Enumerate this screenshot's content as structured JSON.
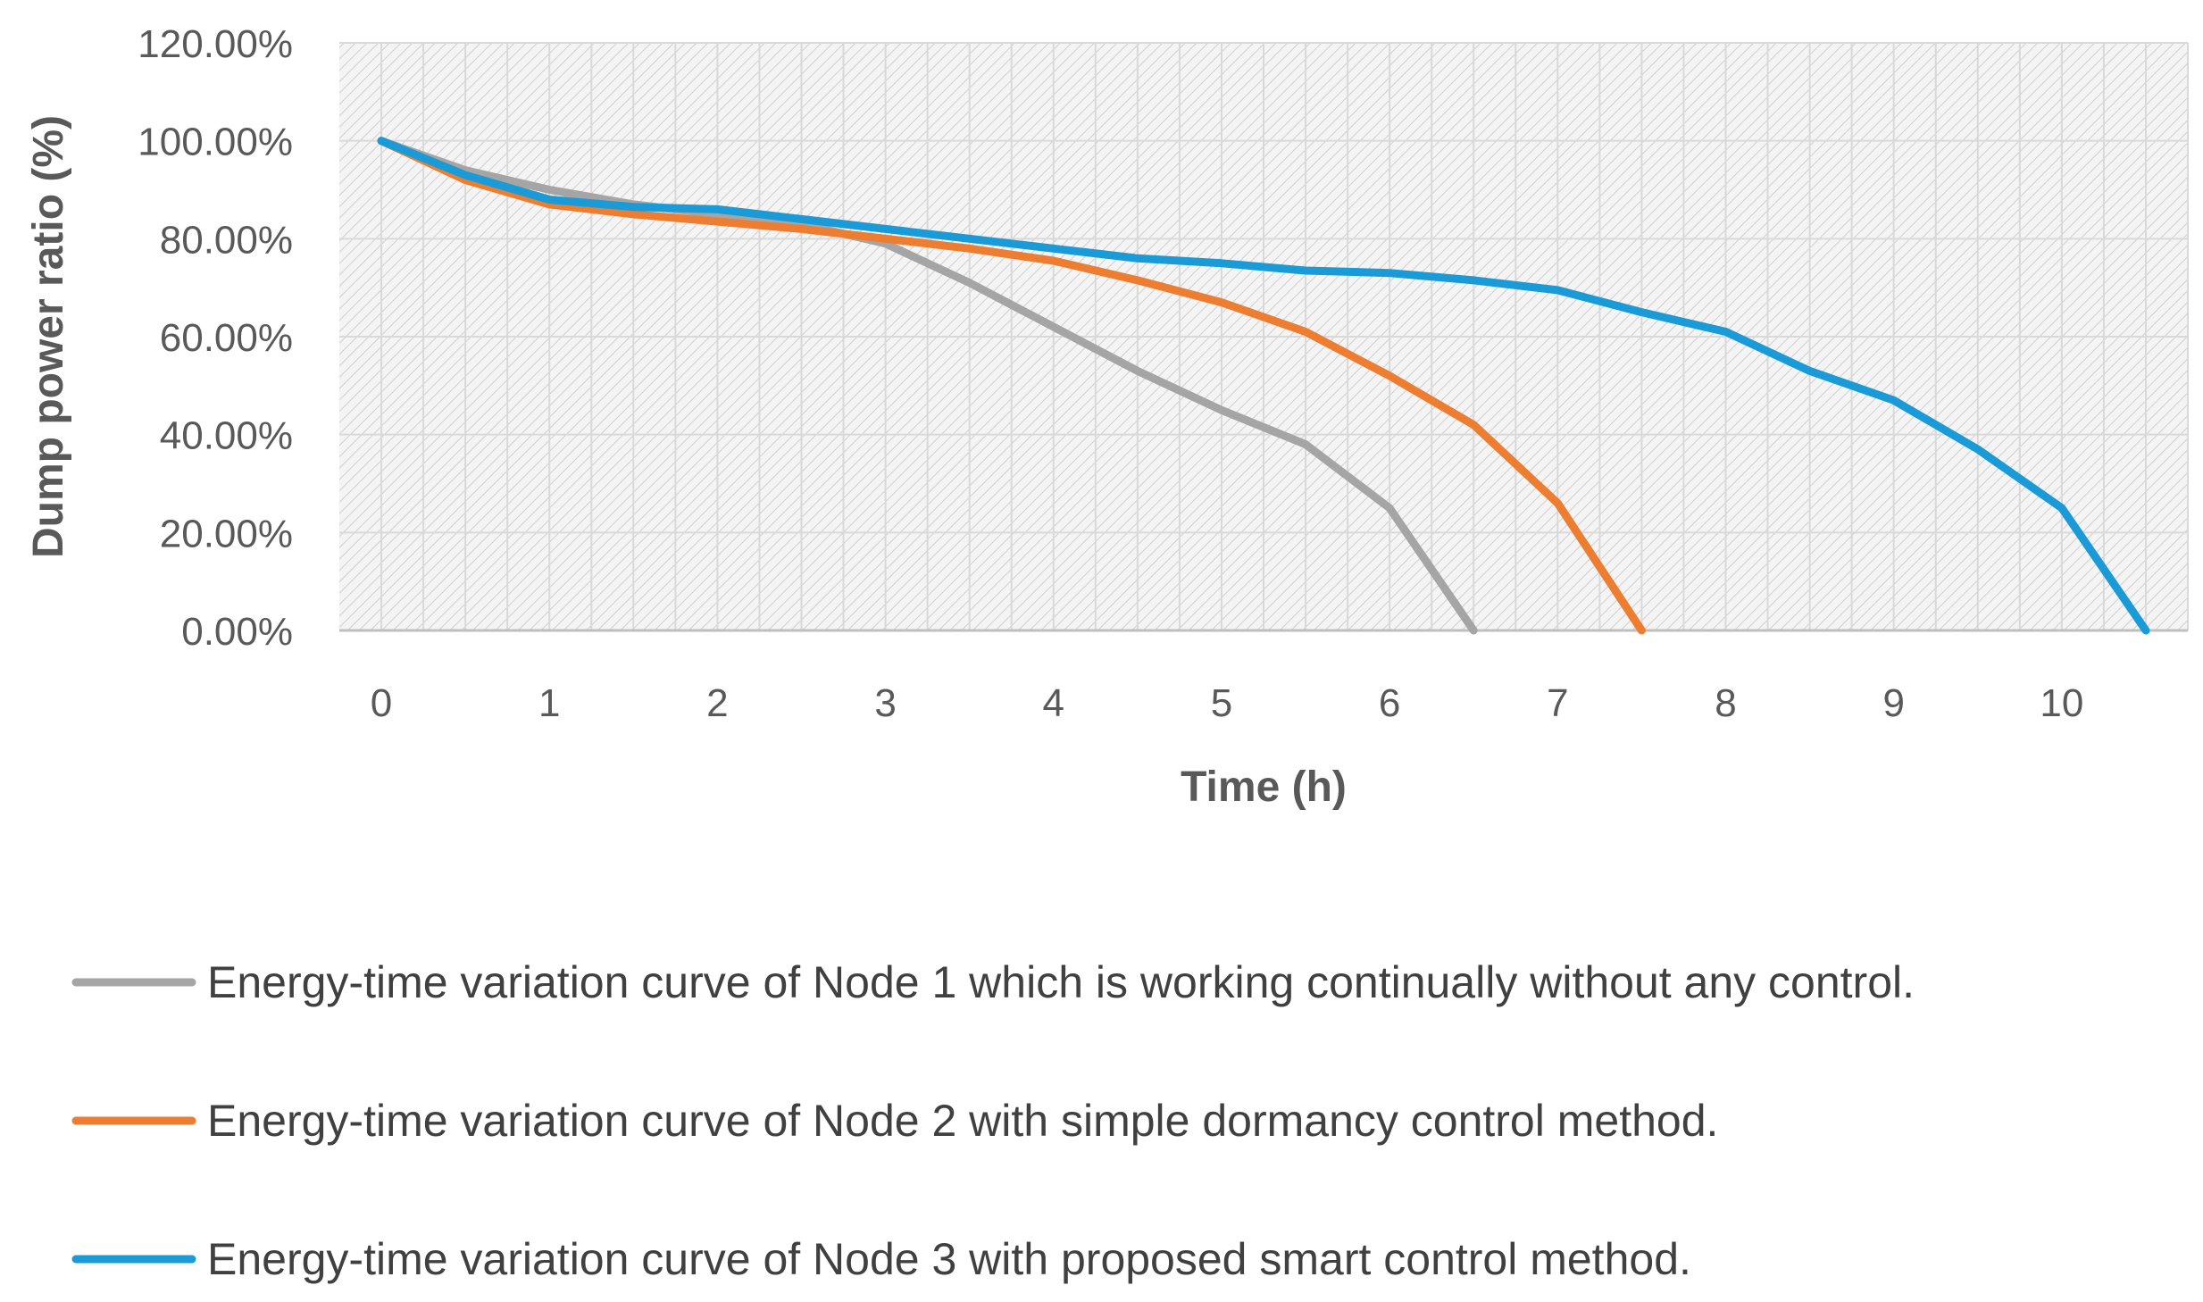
{
  "chart_data": {
    "type": "line",
    "title": "",
    "xlabel": "Time (h)",
    "ylabel": "Dump power ratio (%)",
    "x_ticks": [
      "0",
      "1",
      "2",
      "3",
      "4",
      "5",
      "6",
      "7",
      "8",
      "9",
      "10"
    ],
    "y_ticks": [
      "0.00%",
      "20.00%",
      "40.00%",
      "60.00%",
      "80.00%",
      "100.00%",
      "120.00%"
    ],
    "xlim": [
      -0.25,
      10.75
    ],
    "ylim": [
      0,
      120
    ],
    "grid": true,
    "legend_position": "bottom",
    "series": [
      {
        "name": "Energy-time variation curve of Node 1 which is working continually without any control.",
        "color": "#a5a5a5",
        "points": [
          [
            0,
            100
          ],
          [
            0.5,
            94
          ],
          [
            1,
            90
          ],
          [
            1.5,
            87
          ],
          [
            2,
            85
          ],
          [
            2.5,
            83
          ],
          [
            3,
            79
          ],
          [
            3.5,
            71
          ],
          [
            4,
            62
          ],
          [
            4.5,
            53
          ],
          [
            5,
            45
          ],
          [
            5.5,
            38
          ],
          [
            6,
            25
          ],
          [
            6.5,
            0
          ]
        ]
      },
      {
        "name": "Energy-time variation curve of Node 2 with simple dormancy control method.",
        "color": "#ed7d31",
        "points": [
          [
            0,
            100
          ],
          [
            0.5,
            92
          ],
          [
            1,
            87
          ],
          [
            1.5,
            85
          ],
          [
            2,
            83.5
          ],
          [
            2.5,
            82
          ],
          [
            3,
            80
          ],
          [
            3.5,
            78
          ],
          [
            4,
            75.5
          ],
          [
            4.5,
            71.5
          ],
          [
            5,
            67
          ],
          [
            5.5,
            61
          ],
          [
            6,
            52
          ],
          [
            6.5,
            42
          ],
          [
            7,
            26
          ],
          [
            7.5,
            0
          ]
        ]
      },
      {
        "name": "Energy-time variation curve of Node 3 with proposed smart control method.",
        "color": "#1a9bd7",
        "points": [
          [
            0,
            100
          ],
          [
            0.5,
            93
          ],
          [
            1,
            88
          ],
          [
            1.5,
            86.5
          ],
          [
            2,
            86
          ],
          [
            2.5,
            84
          ],
          [
            3,
            82
          ],
          [
            3.5,
            80
          ],
          [
            4,
            78
          ],
          [
            4.5,
            76
          ],
          [
            5,
            75
          ],
          [
            5.5,
            73.5
          ],
          [
            6,
            73
          ],
          [
            6.5,
            71.5
          ],
          [
            7,
            69.5
          ],
          [
            7.5,
            65
          ],
          [
            8,
            61
          ],
          [
            8.5,
            53
          ],
          [
            9,
            47
          ],
          [
            9.5,
            37
          ],
          [
            10,
            25
          ],
          [
            10.5,
            0
          ]
        ]
      }
    ]
  }
}
